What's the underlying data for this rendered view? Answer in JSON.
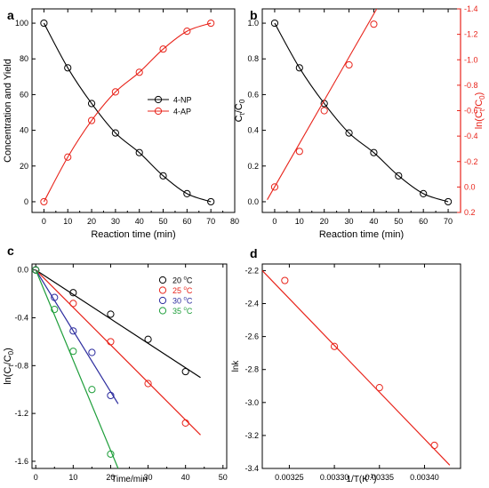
{
  "chart_data": [
    {
      "panel_label": "a",
      "type": "line",
      "title": "",
      "xlabel": "Reaction time (min)",
      "ylabel": "Concentration and Yield",
      "xlim": [
        -5,
        80
      ],
      "ylim": [
        -6,
        108
      ],
      "xticks": [
        0,
        10,
        20,
        30,
        40,
        50,
        60,
        70,
        80
      ],
      "yticks": [
        0,
        20,
        40,
        60,
        80,
        100
      ],
      "grid": false,
      "legend_position": "center-right",
      "series": [
        {
          "name": "4-NP",
          "color": "#000000",
          "marker": "circle-open",
          "x": [
            0,
            10,
            20,
            30,
            40,
            50,
            60,
            70
          ],
          "y": [
            100,
            75,
            55,
            38.5,
            27.5,
            14.5,
            4.5,
            0
          ]
        },
        {
          "name": "4-AP",
          "color": "#e8231a",
          "marker": "circle-open",
          "x": [
            0,
            10,
            20,
            30,
            40,
            50,
            60,
            70
          ],
          "y": [
            0,
            25,
            45.5,
            61.5,
            72.5,
            85.5,
            95.5,
            100
          ]
        }
      ]
    },
    {
      "panel_label": "b",
      "type": "line",
      "title": "",
      "xlabel": "Reaction time (min)",
      "ylabel": "C",
      "ylabel_sub1": "t",
      "ylabel_sep": "/C",
      "ylabel_sub2": "0",
      "y2label": "ln(C",
      "y2label_sub1": "t",
      "y2label_sep": "/C",
      "y2label_sub2": "0",
      "y2label_end": ")",
      "xlim": [
        -5,
        75
      ],
      "ylim": [
        -0.06,
        1.08
      ],
      "y2lim": [
        0.2,
        -1.4
      ],
      "xticks": [
        0,
        10,
        20,
        30,
        40,
        50,
        60,
        70
      ],
      "yticks": [
        0.0,
        0.2,
        0.4,
        0.6,
        0.8,
        1.0
      ],
      "ytick_labels": [
        "0.0",
        "0.2",
        "0.4",
        "0.6",
        "0.8",
        "1.0"
      ],
      "y2ticks": [
        0.2,
        0.0,
        -0.2,
        -0.4,
        -0.6,
        -0.8,
        -1.0,
        -1.2,
        -1.4
      ],
      "y2tick_labels": [
        "0.2",
        "0.0",
        "-0.2",
        "-0.4",
        "-0.6",
        "-0.8",
        "-1.0",
        "-1.2",
        "-1.4"
      ],
      "grid": false,
      "series": [
        {
          "name": "",
          "axis": "left",
          "color": "#000000",
          "marker": "circle-open",
          "x": [
            0,
            10,
            20,
            30,
            40,
            50,
            60,
            70
          ],
          "y": [
            1.0,
            0.75,
            0.55,
            0.385,
            0.275,
            0.145,
            0.045,
            0.0
          ]
        },
        {
          "name": "",
          "axis": "right",
          "color": "#e8231a",
          "marker": "circle-open",
          "x": [
            0,
            10,
            20,
            30,
            40
          ],
          "y": [
            0.0,
            -0.28,
            -0.6,
            -0.96,
            -1.28
          ],
          "fit": {
            "x": [
              -3,
              50
            ],
            "y": [
              0.1,
              -1.7
            ]
          }
        }
      ]
    },
    {
      "panel_label": "c",
      "type": "scatter",
      "title": "",
      "xlabel": "Time/min",
      "ylabel": "ln(C",
      "ylabel_sub1": "t",
      "ylabel_sep": "/C",
      "ylabel_sub2": "0",
      "ylabel_end": ")",
      "xlim": [
        -1,
        51
      ],
      "ylim": [
        -1.66,
        0.05
      ],
      "xticks": [
        0,
        10,
        20,
        30,
        40,
        50
      ],
      "yticks": [
        0.0,
        -0.4,
        -0.8,
        -1.2,
        -1.6
      ],
      "ytick_labels": [
        "0.0",
        "-0.4",
        "-0.8",
        "-1.2",
        "-1.6"
      ],
      "grid": false,
      "legend_position": "top-right",
      "legend_unit": "C",
      "series": [
        {
          "name": "20",
          "color": "#000000",
          "x": [
            0,
            10,
            20,
            30,
            40
          ],
          "y": [
            0,
            -0.19,
            -0.37,
            -0.58,
            -0.85
          ],
          "fit": {
            "x": [
              0,
              44
            ],
            "y": [
              0,
              -0.9
            ]
          }
        },
        {
          "name": "25",
          "color": "#e8231a",
          "x": [
            0,
            10,
            20,
            30,
            40
          ],
          "y": [
            0,
            -0.28,
            -0.6,
            -0.95,
            -1.28
          ],
          "fit": {
            "x": [
              0,
              44
            ],
            "y": [
              0,
              -1.38
            ]
          }
        },
        {
          "name": "30",
          "color": "#2b2b9e",
          "x": [
            0,
            5,
            10,
            15,
            20
          ],
          "y": [
            0,
            -0.23,
            -0.51,
            -0.69,
            -1.05
          ],
          "fit": {
            "x": [
              0,
              22
            ],
            "y": [
              0,
              -1.12
            ]
          }
        },
        {
          "name": "35",
          "color": "#1e9e3a",
          "x": [
            0,
            5,
            10,
            15,
            20
          ],
          "y": [
            0,
            -0.33,
            -0.68,
            -1.0,
            -1.54
          ],
          "fit": {
            "x": [
              0,
              22
            ],
            "y": [
              0,
              -1.66
            ]
          }
        }
      ]
    },
    {
      "panel_label": "d",
      "type": "scatter",
      "title": "",
      "xlabel": "1/T(K",
      "xlabel_sup": "-1",
      "xlabel_end": ")",
      "ylabel": "lnk",
      "xlim": [
        0.00322,
        0.00344
      ],
      "ylim": [
        -3.4,
        -2.16
      ],
      "xticks": [
        0.00325,
        0.0033,
        0.00335,
        0.0034
      ],
      "xtick_labels": [
        "0.00325",
        "0.00330",
        "0.00335",
        "0.00340"
      ],
      "yticks": [
        -2.2,
        -2.4,
        -2.6,
        -2.8,
        -3.0,
        -3.2,
        -3.4
      ],
      "ytick_labels": [
        "-2.2",
        "-2.4",
        "-2.6",
        "-2.8",
        "-3.0",
        "-3.2",
        "-3.4"
      ],
      "grid": false,
      "series": [
        {
          "name": "",
          "color": "#e8231a",
          "x": [
            0.003245,
            0.0033,
            0.00335,
            0.003411
          ],
          "y": [
            -2.26,
            -2.66,
            -2.91,
            -3.26
          ],
          "fit": {
            "x": [
              0.00322,
              0.003428
            ],
            "y": [
              -2.2,
              -3.38
            ]
          }
        }
      ]
    }
  ]
}
